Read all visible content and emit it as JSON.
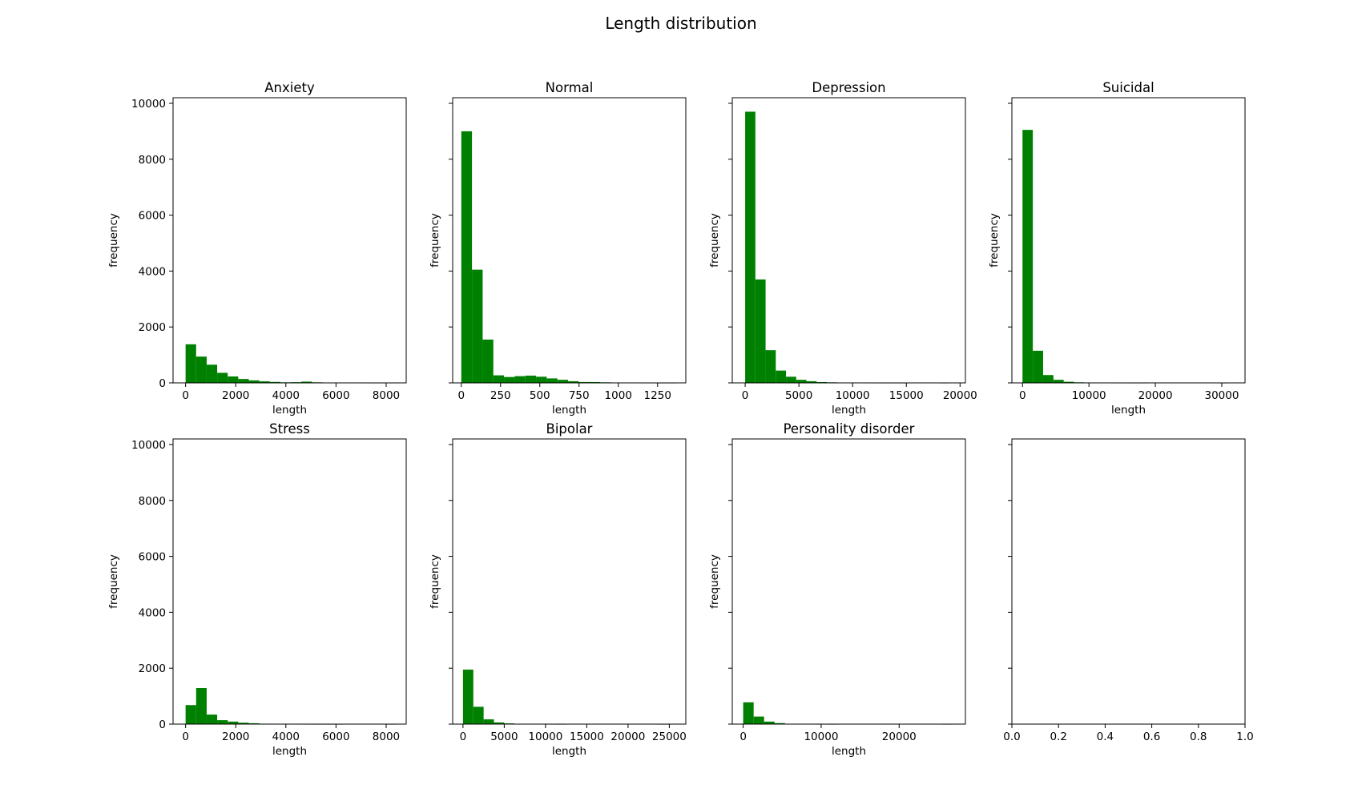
{
  "figure": {
    "title": "Length distribution"
  },
  "chart_data": [
    {
      "type": "bar",
      "title": "Anxiety",
      "xlabel": "length",
      "ylabel": "frequency",
      "xlim": [
        -500,
        8800
      ],
      "ylim": [
        0,
        10200
      ],
      "xticks": [
        0,
        2000,
        4000,
        6000,
        8000
      ],
      "yticks": [
        0,
        2000,
        4000,
        6000,
        8000,
        10000
      ],
      "bin_start": 0,
      "bin_width": 420,
      "values": [
        1380,
        940,
        650,
        360,
        230,
        140,
        90,
        55,
        35,
        20,
        25,
        45,
        20,
        8,
        5,
        4,
        3,
        2,
        2,
        2
      ]
    },
    {
      "type": "bar",
      "title": "Normal",
      "xlabel": "length",
      "ylabel": "frequency",
      "xlim": [
        -55,
        1430
      ],
      "ylim": [
        0,
        10200
      ],
      "xticks": [
        0,
        250,
        500,
        750,
        1000,
        1250
      ],
      "yticks": [
        0,
        2000,
        4000,
        6000,
        8000,
        10000
      ],
      "bin_start": 0,
      "bin_width": 68,
      "values": [
        9000,
        4050,
        1550,
        270,
        210,
        240,
        260,
        220,
        160,
        110,
        60,
        30,
        30,
        20,
        12,
        6,
        3,
        2,
        1,
        1
      ]
    },
    {
      "type": "bar",
      "title": "Depression",
      "xlabel": "length",
      "ylabel": "frequency",
      "xlim": [
        -1200,
        20500
      ],
      "ylim": [
        0,
        10200
      ],
      "xticks": [
        0,
        5000,
        10000,
        15000,
        20000
      ],
      "yticks": [
        0,
        2000,
        4000,
        6000,
        8000,
        10000
      ],
      "bin_start": 0,
      "bin_width": 950,
      "values": [
        9700,
        3700,
        1170,
        440,
        220,
        110,
        60,
        30,
        20,
        10,
        5,
        3,
        2,
        1,
        1,
        1,
        0,
        0,
        0,
        1
      ]
    },
    {
      "type": "bar",
      "title": "Suicidal",
      "xlabel": "length",
      "ylabel": "frequency",
      "xlim": [
        -1600,
        33500
      ],
      "ylim": [
        0,
        10200
      ],
      "xticks": [
        0,
        10000,
        20000,
        30000
      ],
      "yticks": [
        0,
        2000,
        4000,
        6000,
        8000,
        10000
      ],
      "bin_start": 0,
      "bin_width": 1550,
      "values": [
        9050,
        1150,
        280,
        110,
        40,
        20,
        10,
        5,
        3,
        2,
        1,
        1,
        0,
        0,
        0,
        0,
        0,
        0,
        0,
        1
      ]
    },
    {
      "type": "bar",
      "title": "Stress",
      "xlabel": "length",
      "ylabel": "frequency",
      "xlim": [
        -500,
        8800
      ],
      "ylim": [
        0,
        10200
      ],
      "xticks": [
        0,
        2000,
        4000,
        6000,
        8000
      ],
      "yticks": [
        0,
        2000,
        4000,
        6000,
        8000,
        10000
      ],
      "bin_start": 0,
      "bin_width": 420,
      "values": [
        680,
        1290,
        340,
        140,
        90,
        50,
        30,
        15,
        8,
        5,
        3,
        2,
        1,
        1,
        1,
        0,
        0,
        0,
        0,
        1
      ]
    },
    {
      "type": "bar",
      "title": "Bipolar",
      "xlabel": "length",
      "ylabel": "frequency",
      "xlim": [
        -1250,
        27000
      ],
      "ylim": [
        0,
        10200
      ],
      "xticks": [
        0,
        5000,
        10000,
        15000,
        20000,
        25000
      ],
      "yticks": [
        0,
        2000,
        4000,
        6000,
        8000,
        10000
      ],
      "bin_start": 0,
      "bin_width": 1250,
      "values": [
        1950,
        620,
        170,
        60,
        25,
        10,
        5,
        3,
        2,
        1,
        0,
        0,
        0,
        0,
        0,
        0,
        0,
        0,
        0,
        1
      ]
    },
    {
      "type": "bar",
      "title": "Personality disorder",
      "xlabel": "length",
      "ylabel": "frequency",
      "xlim": [
        -1400,
        28500
      ],
      "ylim": [
        0,
        10200
      ],
      "xticks": [
        0,
        10000,
        20000
      ],
      "yticks": [
        0,
        2000,
        4000,
        6000,
        8000,
        10000
      ],
      "bin_start": 0,
      "bin_width": 1340,
      "values": [
        780,
        270,
        90,
        35,
        12,
        5,
        3,
        2,
        1,
        0,
        0,
        0,
        0,
        0,
        0,
        0,
        0,
        0,
        0,
        1
      ]
    },
    {
      "type": "bar",
      "title": "",
      "xlabel": "",
      "ylabel": "",
      "xlim": [
        0,
        1
      ],
      "ylim": [
        0,
        10200
      ],
      "xticks": [
        0.0,
        0.2,
        0.4,
        0.6,
        0.8,
        1.0
      ],
      "xtick_labels": [
        "0.0",
        "0.2",
        "0.4",
        "0.6",
        "0.8",
        "1.0"
      ],
      "yticks": [
        0,
        2000,
        4000,
        6000,
        8000,
        10000
      ],
      "values": []
    }
  ],
  "colors": {
    "bar": "#008000",
    "axes": "#000000",
    "background": "#ffffff"
  }
}
